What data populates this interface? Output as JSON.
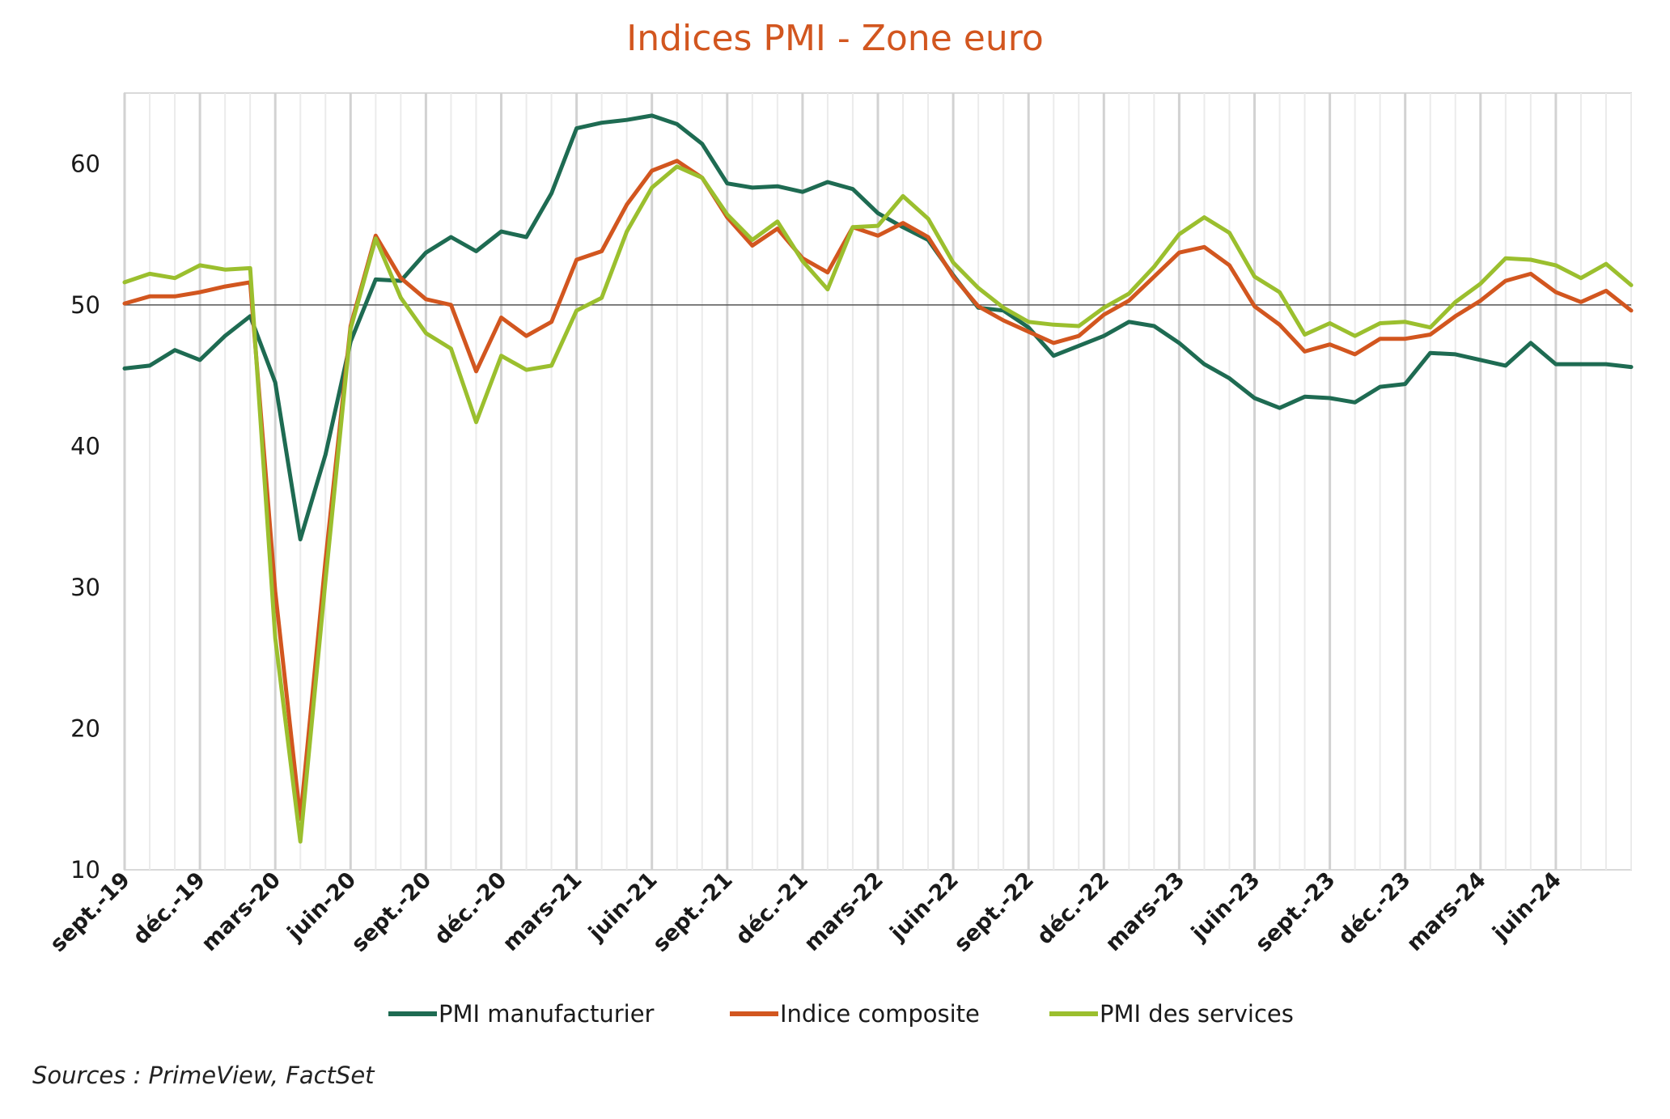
{
  "chart_data": {
    "type": "line",
    "title": "Indices PMI - Zone euro",
    "xlabel": "",
    "ylabel": "",
    "ylim": [
      10,
      65
    ],
    "yticks": [
      10,
      20,
      30,
      40,
      50,
      60
    ],
    "reference_line": 50,
    "grid": "vertical",
    "legend_position": "bottom",
    "x": [
      "sept.-19",
      "oct.-19",
      "nov.-19",
      "déc.-19",
      "janv.-20",
      "févr.-20",
      "mars-20",
      "avr.-20",
      "mai-20",
      "juin-20",
      "juil.-20",
      "août-20",
      "sept.-20",
      "oct.-20",
      "nov.-20",
      "déc.-20",
      "janv.-21",
      "févr.-21",
      "mars-21",
      "avr.-21",
      "mai-21",
      "juin-21",
      "juil.-21",
      "août-21",
      "sept.-21",
      "oct.-21",
      "nov.-21",
      "déc.-21",
      "janv.-22",
      "févr.-22",
      "mars-22",
      "avr.-22",
      "mai-22",
      "juin-22",
      "juil.-22",
      "août-22",
      "sept.-22",
      "oct.-22",
      "nov.-22",
      "déc.-22",
      "janv.-23",
      "févr.-23",
      "mars-23",
      "avr.-23",
      "mai-23",
      "juin-23",
      "juil.-23",
      "août-23",
      "sept.-23",
      "oct.-23",
      "nov.-23",
      "déc.-23",
      "janv.-24",
      "févr.-24",
      "mars-24",
      "avr.-24",
      "mai-24",
      "juin-24",
      "juil.-24",
      "août-24",
      "sept.-24"
    ],
    "xtick_labels": [
      "sept.-19",
      "déc.-19",
      "mars-20",
      "juin-20",
      "sept.-20",
      "déc.-20",
      "mars-21",
      "juin-21",
      "sept.-21",
      "déc.-21",
      "mars-22",
      "juin-22",
      "sept.-22",
      "déc.-22",
      "mars-23",
      "juin-23",
      "sept.-23",
      "déc.-23",
      "mars-24",
      "juin-24"
    ],
    "series": [
      {
        "name": "PMI manufacturier",
        "color": "#1e6b52",
        "values": [
          45.5,
          45.7,
          46.8,
          46.1,
          47.8,
          49.2,
          44.5,
          33.4,
          39.4,
          47.4,
          51.8,
          51.7,
          53.7,
          54.8,
          53.8,
          55.2,
          54.8,
          57.9,
          62.5,
          62.9,
          63.1,
          63.4,
          62.8,
          61.4,
          58.6,
          58.3,
          58.4,
          58.0,
          58.7,
          58.2,
          56.5,
          55.5,
          54.6,
          52.1,
          49.8,
          49.6,
          48.4,
          46.4,
          47.1,
          47.8,
          48.8,
          48.5,
          47.3,
          45.8,
          44.8,
          43.4,
          42.7,
          43.5,
          43.4,
          43.1,
          44.2,
          44.4,
          46.6,
          46.5,
          46.1,
          45.7,
          47.3,
          45.8,
          45.8,
          45.8,
          45.6
        ]
      },
      {
        "name": "Indice composite",
        "color": "#d2561f",
        "values": [
          50.1,
          50.6,
          50.6,
          50.9,
          51.3,
          51.6,
          29.7,
          13.6,
          31.9,
          48.5,
          54.9,
          51.9,
          50.4,
          50.0,
          45.3,
          49.1,
          47.8,
          48.8,
          53.2,
          53.8,
          57.1,
          59.5,
          60.2,
          59.0,
          56.2,
          54.2,
          55.4,
          53.3,
          52.3,
          55.5,
          54.9,
          55.8,
          54.8,
          52.0,
          49.9,
          48.9,
          48.1,
          47.3,
          47.8,
          49.3,
          50.3,
          52.0,
          53.7,
          54.1,
          52.8,
          49.9,
          48.6,
          46.7,
          47.2,
          46.5,
          47.6,
          47.6,
          47.9,
          49.2,
          50.3,
          51.7,
          52.2,
          50.9,
          50.2,
          51.0,
          49.6
        ]
      },
      {
        "name": "PMI des services",
        "color": "#9bbf2e",
        "values": [
          51.6,
          52.2,
          51.9,
          52.8,
          52.5,
          52.6,
          26.4,
          12.0,
          30.5,
          48.3,
          54.7,
          50.5,
          48.0,
          46.9,
          41.7,
          46.4,
          45.4,
          45.7,
          49.6,
          50.5,
          55.2,
          58.3,
          59.8,
          59.0,
          56.4,
          54.6,
          55.9,
          53.1,
          51.1,
          55.5,
          55.6,
          57.7,
          56.1,
          53.0,
          51.2,
          49.8,
          48.8,
          48.6,
          48.5,
          49.8,
          50.8,
          52.7,
          55.0,
          56.2,
          55.1,
          52.0,
          50.9,
          47.9,
          48.7,
          47.8,
          48.7,
          48.8,
          48.4,
          50.2,
          51.5,
          53.3,
          53.2,
          52.8,
          51.9,
          52.9,
          51.4
        ]
      }
    ]
  },
  "source": "Sources : PrimeView, FactSet"
}
